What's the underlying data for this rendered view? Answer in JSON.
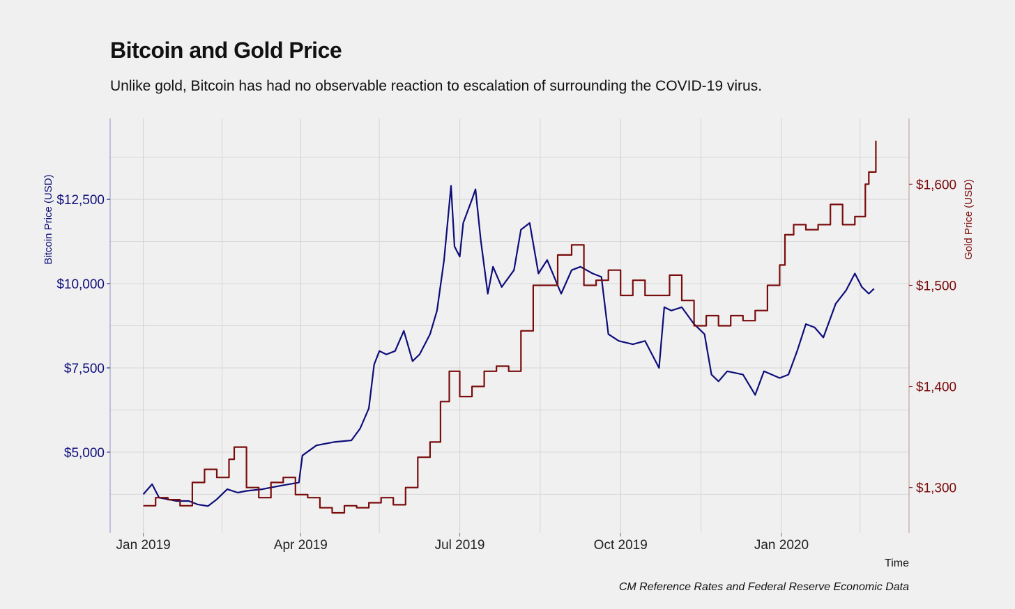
{
  "chart_data": {
    "type": "line",
    "title": "Bitcoin and Gold Price",
    "subtitle": "Unlike gold, Bitcoin has had no observable reaction to escalation of surrounding the COVID-19 virus.",
    "source": "CM Reference Rates and Federal Reserve Economic Data",
    "xlabel": "Time",
    "ylabel_left": "Bitcoin Price (USD)",
    "ylabel_right": "Gold Price (USD)",
    "x_ticks": [
      "Jan 2019",
      "Apr 2019",
      "Jul 2019",
      "Oct 2019",
      "Jan 2020"
    ],
    "y_left_ticks": [
      "$5,000",
      "$7,500",
      "$10,000",
      "$12,500"
    ],
    "y_right_ticks": [
      "$1,300",
      "$1,400",
      "$1,500",
      "$1,600"
    ],
    "y_left_range": [
      2600,
      14900
    ],
    "y_right_range": [
      1255,
      1665
    ],
    "x_range": [
      "2018-12-13",
      "2020-03-14"
    ],
    "grid": true,
    "colors": {
      "bitcoin": "#0d0d7a",
      "gold": "#7a0c0c",
      "grid": "#d6d6d6",
      "background": "#f0f0f0"
    },
    "series": [
      {
        "name": "Bitcoin",
        "axis": "left",
        "points": [
          [
            "2019-01-01",
            3750
          ],
          [
            "2019-01-06",
            4050
          ],
          [
            "2019-01-10",
            3650
          ],
          [
            "2019-01-15",
            3600
          ],
          [
            "2019-01-20",
            3550
          ],
          [
            "2019-01-27",
            3550
          ],
          [
            "2019-02-01",
            3450
          ],
          [
            "2019-02-07",
            3400
          ],
          [
            "2019-02-12",
            3600
          ],
          [
            "2019-02-18",
            3900
          ],
          [
            "2019-02-24",
            3800
          ],
          [
            "2019-03-01",
            3850
          ],
          [
            "2019-03-10",
            3900
          ],
          [
            "2019-03-20",
            4000
          ],
          [
            "2019-03-31",
            4100
          ],
          [
            "2019-04-02",
            4900
          ],
          [
            "2019-04-10",
            5200
          ],
          [
            "2019-04-20",
            5300
          ],
          [
            "2019-04-30",
            5350
          ],
          [
            "2019-05-05",
            5700
          ],
          [
            "2019-05-10",
            6300
          ],
          [
            "2019-05-13",
            7600
          ],
          [
            "2019-05-16",
            8000
          ],
          [
            "2019-05-20",
            7900
          ],
          [
            "2019-05-25",
            8000
          ],
          [
            "2019-05-30",
            8600
          ],
          [
            "2019-06-04",
            7700
          ],
          [
            "2019-06-08",
            7900
          ],
          [
            "2019-06-14",
            8500
          ],
          [
            "2019-06-18",
            9200
          ],
          [
            "2019-06-22",
            10700
          ],
          [
            "2019-06-26",
            12900
          ],
          [
            "2019-06-28",
            11100
          ],
          [
            "2019-07-01",
            10800
          ],
          [
            "2019-07-03",
            11800
          ],
          [
            "2019-07-08",
            12500
          ],
          [
            "2019-07-10",
            12800
          ],
          [
            "2019-07-13",
            11300
          ],
          [
            "2019-07-17",
            9700
          ],
          [
            "2019-07-20",
            10500
          ],
          [
            "2019-07-25",
            9900
          ],
          [
            "2019-08-01",
            10400
          ],
          [
            "2019-08-05",
            11600
          ],
          [
            "2019-08-10",
            11800
          ],
          [
            "2019-08-15",
            10300
          ],
          [
            "2019-08-20",
            10700
          ],
          [
            "2019-08-28",
            9700
          ],
          [
            "2019-09-03",
            10400
          ],
          [
            "2019-09-08",
            10500
          ],
          [
            "2019-09-15",
            10300
          ],
          [
            "2019-09-20",
            10200
          ],
          [
            "2019-09-24",
            8500
          ],
          [
            "2019-09-30",
            8300
          ],
          [
            "2019-10-08",
            8200
          ],
          [
            "2019-10-15",
            8300
          ],
          [
            "2019-10-23",
            7500
          ],
          [
            "2019-10-26",
            9300
          ],
          [
            "2019-10-30",
            9200
          ],
          [
            "2019-11-05",
            9300
          ],
          [
            "2019-11-12",
            8800
          ],
          [
            "2019-11-18",
            8500
          ],
          [
            "2019-11-22",
            7300
          ],
          [
            "2019-11-26",
            7100
          ],
          [
            "2019-12-01",
            7400
          ],
          [
            "2019-12-10",
            7300
          ],
          [
            "2019-12-17",
            6700
          ],
          [
            "2019-12-22",
            7400
          ],
          [
            "2019-12-31",
            7200
          ],
          [
            "2020-01-05",
            7300
          ],
          [
            "2020-01-10",
            8000
          ],
          [
            "2020-01-15",
            8800
          ],
          [
            "2020-01-20",
            8700
          ],
          [
            "2020-01-25",
            8400
          ],
          [
            "2020-02-01",
            9400
          ],
          [
            "2020-02-07",
            9800
          ],
          [
            "2020-02-12",
            10300
          ],
          [
            "2020-02-16",
            9900
          ],
          [
            "2020-02-20",
            9700
          ],
          [
            "2020-02-23",
            9850
          ]
        ]
      },
      {
        "name": "Gold",
        "axis": "right",
        "points": [
          [
            "2019-01-01",
            1282
          ],
          [
            "2019-01-08",
            1290
          ],
          [
            "2019-01-15",
            1288
          ],
          [
            "2019-01-22",
            1282
          ],
          [
            "2019-01-29",
            1305
          ],
          [
            "2019-02-05",
            1318
          ],
          [
            "2019-02-12",
            1310
          ],
          [
            "2019-02-19",
            1328
          ],
          [
            "2019-02-22",
            1340
          ],
          [
            "2019-03-01",
            1300
          ],
          [
            "2019-03-08",
            1290
          ],
          [
            "2019-03-15",
            1305
          ],
          [
            "2019-03-22",
            1310
          ],
          [
            "2019-03-29",
            1293
          ],
          [
            "2019-04-05",
            1290
          ],
          [
            "2019-04-12",
            1280
          ],
          [
            "2019-04-19",
            1275
          ],
          [
            "2019-04-26",
            1282
          ],
          [
            "2019-05-03",
            1280
          ],
          [
            "2019-05-10",
            1285
          ],
          [
            "2019-05-17",
            1290
          ],
          [
            "2019-05-24",
            1283
          ],
          [
            "2019-05-31",
            1300
          ],
          [
            "2019-06-07",
            1330
          ],
          [
            "2019-06-14",
            1345
          ],
          [
            "2019-06-20",
            1385
          ],
          [
            "2019-06-25",
            1415
          ],
          [
            "2019-07-01",
            1390
          ],
          [
            "2019-07-08",
            1400
          ],
          [
            "2019-07-15",
            1415
          ],
          [
            "2019-07-22",
            1420
          ],
          [
            "2019-07-29",
            1415
          ],
          [
            "2019-08-05",
            1455
          ],
          [
            "2019-08-12",
            1500
          ],
          [
            "2019-08-19",
            1500
          ],
          [
            "2019-08-26",
            1530
          ],
          [
            "2019-09-03",
            1540
          ],
          [
            "2019-09-10",
            1500
          ],
          [
            "2019-09-17",
            1505
          ],
          [
            "2019-09-24",
            1515
          ],
          [
            "2019-10-01",
            1490
          ],
          [
            "2019-10-08",
            1505
          ],
          [
            "2019-10-15",
            1490
          ],
          [
            "2019-10-22",
            1490
          ],
          [
            "2019-10-29",
            1510
          ],
          [
            "2019-11-05",
            1485
          ],
          [
            "2019-11-12",
            1460
          ],
          [
            "2019-11-19",
            1470
          ],
          [
            "2019-11-26",
            1460
          ],
          [
            "2019-12-03",
            1470
          ],
          [
            "2019-12-10",
            1465
          ],
          [
            "2019-12-17",
            1475
          ],
          [
            "2019-12-24",
            1500
          ],
          [
            "2019-12-31",
            1520
          ],
          [
            "2020-01-03",
            1550
          ],
          [
            "2020-01-08",
            1560
          ],
          [
            "2020-01-15",
            1555
          ],
          [
            "2020-01-22",
            1560
          ],
          [
            "2020-01-29",
            1580
          ],
          [
            "2020-02-05",
            1560
          ],
          [
            "2020-02-12",
            1568
          ],
          [
            "2020-02-18",
            1600
          ],
          [
            "2020-02-20",
            1612
          ],
          [
            "2020-02-24",
            1643
          ]
        ]
      }
    ]
  }
}
